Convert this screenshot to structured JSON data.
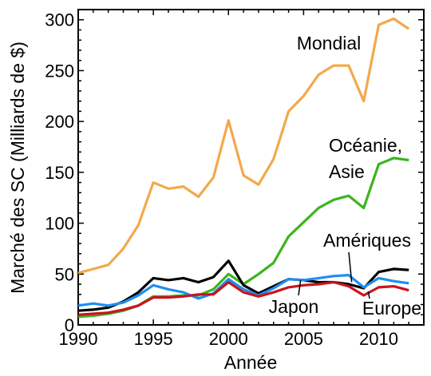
{
  "chart_data": {
    "type": "line",
    "xlabel": "Année",
    "ylabel": "Marché des SC (Milliards de $)",
    "xlim": [
      1990,
      2013
    ],
    "ylim": [
      0,
      310
    ],
    "x_ticks": [
      1990,
      1995,
      2000,
      2005,
      2010
    ],
    "y_ticks": [
      0,
      50,
      100,
      150,
      200,
      250,
      300
    ],
    "grid": false,
    "legend": "inline labels",
    "x": [
      1990,
      1991,
      1992,
      1993,
      1994,
      1995,
      1996,
      1997,
      1998,
      1999,
      2000,
      2001,
      2002,
      2003,
      2004,
      2005,
      2006,
      2007,
      2008,
      2009,
      2010,
      2011,
      2012
    ],
    "series": [
      {
        "name": "Mondial",
        "label_lines": [
          "Mondial"
        ],
        "color": "#f2a94b",
        "values": [
          51,
          55,
          59,
          75,
          98,
          140,
          134,
          136,
          126,
          145,
          201,
          147,
          138,
          163,
          210,
          225,
          246,
          255,
          255,
          220,
          295,
          301,
          291
        ]
      },
      {
        "name": "Océanie, Asie",
        "label_lines": [
          "Océanie,",
          "Asie"
        ],
        "color": "#3cb41e",
        "values": [
          8,
          9,
          11,
          14,
          19,
          28,
          28,
          29,
          29,
          35,
          50,
          40,
          50,
          61,
          87,
          101,
          115,
          123,
          127,
          115,
          158,
          164,
          162
        ]
      },
      {
        "name": "Amériques",
        "label_lines": [
          "Amériques"
        ],
        "color": "#000000",
        "values": [
          14,
          15,
          17,
          23,
          32,
          46,
          44,
          46,
          42,
          47,
          63,
          39,
          31,
          38,
          45,
          44,
          42,
          42,
          40,
          36,
          52,
          55,
          54
        ]
      },
      {
        "name": "Japon",
        "label_lines": [
          "Japon"
        ],
        "color": "#1f8ef0",
        "values": [
          19,
          21,
          19,
          22,
          29,
          39,
          35,
          32,
          26,
          31,
          45,
          35,
          29,
          36,
          45,
          44,
          46,
          48,
          49,
          37,
          46,
          43,
          41
        ]
      },
      {
        "name": "Europe",
        "label_lines": [
          "Europe"
        ],
        "color": "#c8141e",
        "values": [
          10,
          11,
          12,
          15,
          19,
          27,
          27,
          28,
          30,
          30,
          42,
          32,
          28,
          32,
          37,
          39,
          40,
          42,
          38,
          29,
          37,
          38,
          34
        ]
      }
    ]
  }
}
